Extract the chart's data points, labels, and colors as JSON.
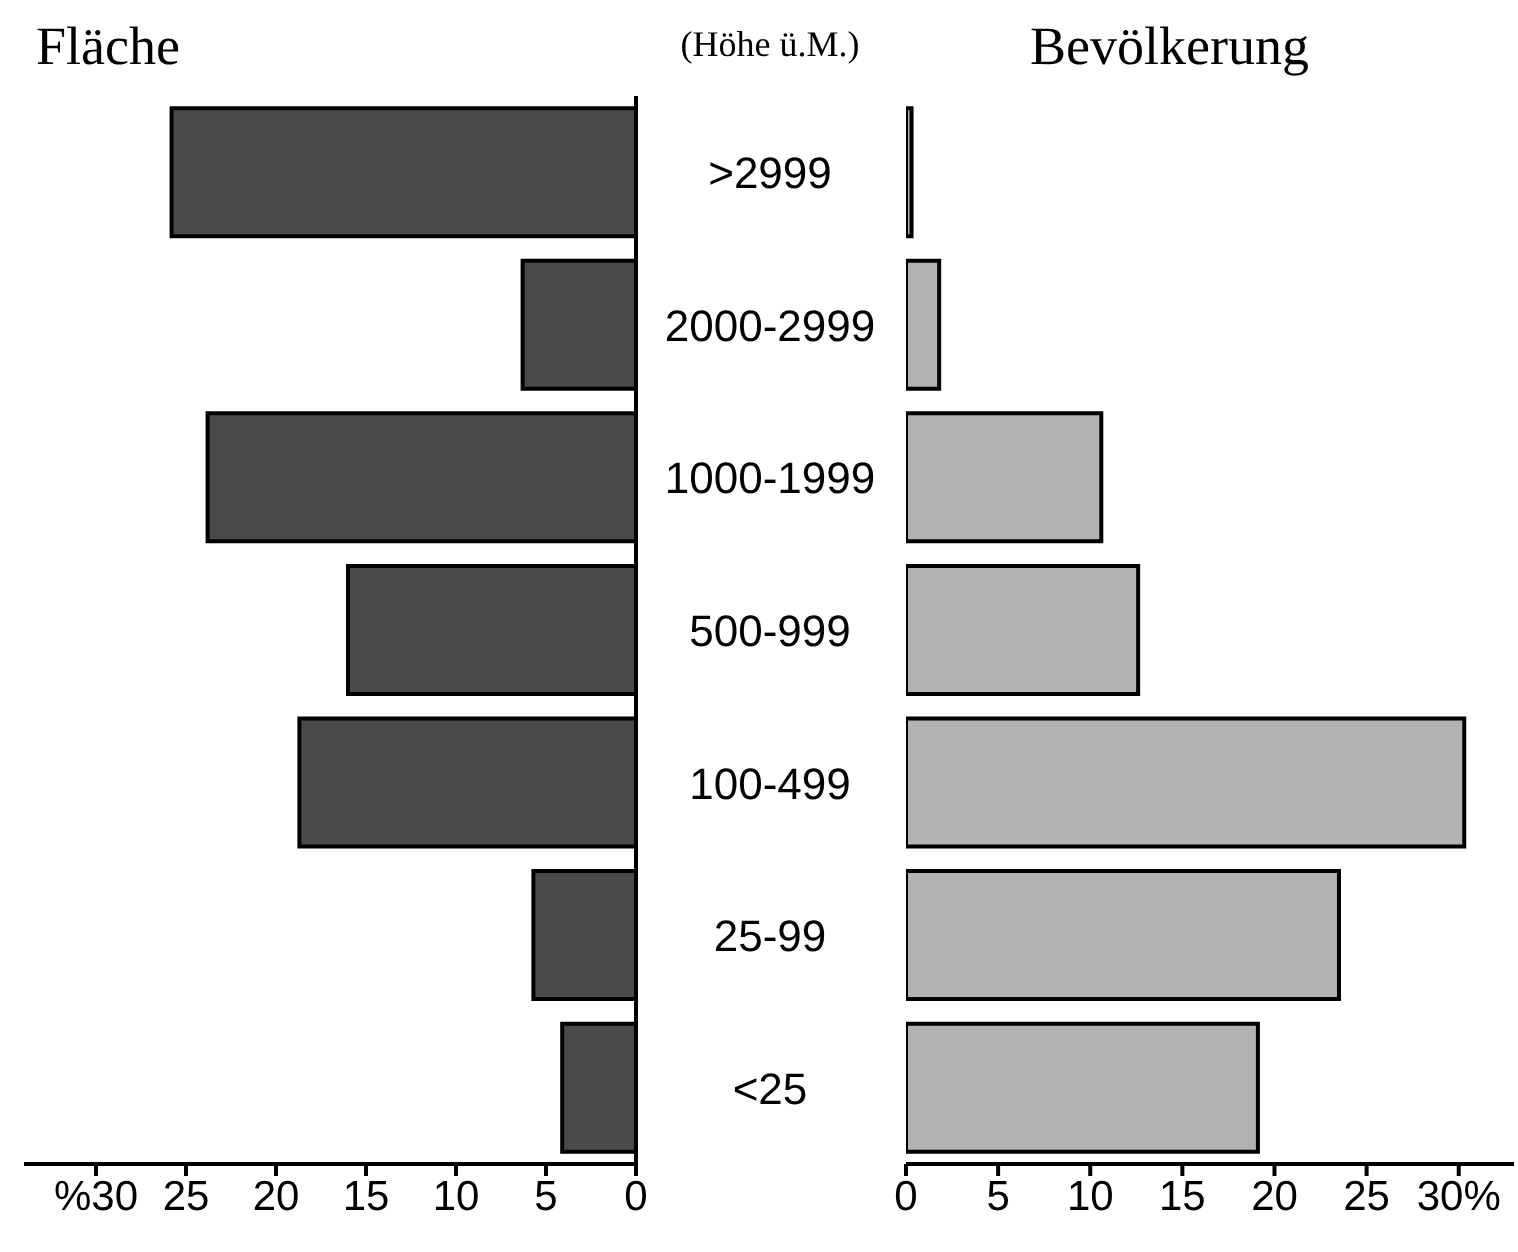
{
  "chart_data": [
    {
      "type": "bar",
      "orientation": "horizontal",
      "title": "Fläche",
      "ylabel": "(Höhe ü.M.)",
      "categories": [
        ">2999",
        "2000-2999",
        "1000-1999",
        "500-999",
        "100-499",
        "25-99",
        "<25"
      ],
      "values": [
        25.8,
        6.3,
        23.8,
        16.0,
        18.7,
        5.7,
        4.1
      ],
      "color": "#4a4a4a",
      "xlim": [
        34,
        0
      ],
      "xticks": [
        {
          "value": 30,
          "label": "%30"
        },
        25,
        20,
        15,
        10,
        5,
        0
      ],
      "grid": false,
      "legend": false
    },
    {
      "type": "bar",
      "orientation": "horizontal",
      "title": "Bevölkerung",
      "values": [
        0.3,
        1.8,
        10.6,
        12.6,
        30.3,
        23.5,
        19.1
      ],
      "color": "#b2b2b2",
      "xlim": [
        0,
        33
      ],
      "xticks": [
        0,
        5,
        10,
        15,
        20,
        25,
        {
          "value": 30,
          "label": "30%"
        }
      ],
      "grid": false,
      "legend": false
    }
  ]
}
